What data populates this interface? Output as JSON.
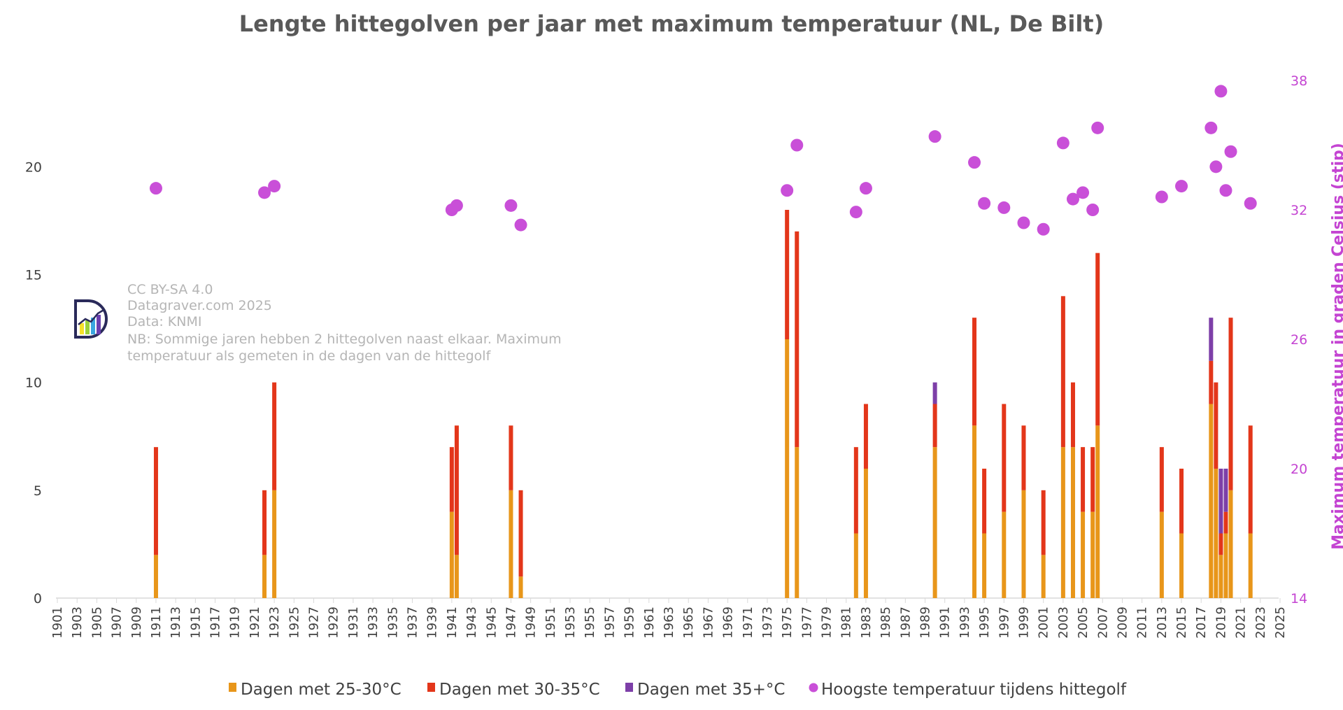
{
  "chart_data": {
    "type": "bar",
    "stacked": true,
    "title": "Lengte hittegolven per jaar met maximum temperatuur (NL, De Bilt)",
    "xlabel": "",
    "ylabel": "",
    "ylabel_right": "Maximum temperatuur in graden Celsius (stip)",
    "ylim": [
      0,
      24
    ],
    "ylim_right": [
      14,
      38
    ],
    "yticks": [
      0,
      5,
      10,
      15,
      20
    ],
    "yticks_right": [
      14,
      20,
      26,
      32,
      38
    ],
    "xlim": [
      1901,
      2025
    ],
    "xticks": [
      "1901",
      "1903",
      "1905",
      "1907",
      "1909",
      "1911",
      "1913",
      "1915",
      "1917",
      "1919",
      "1921",
      "1923",
      "1925",
      "1927",
      "1929",
      "1931",
      "1933",
      "1935",
      "1937",
      "1939",
      "1941",
      "1943",
      "1945",
      "1947",
      "1949",
      "1951",
      "1953",
      "1955",
      "1957",
      "1959",
      "1961",
      "1963",
      "1965",
      "1967",
      "1969",
      "1971",
      "1973",
      "1975",
      "1977",
      "1979",
      "1981",
      "1983",
      "1985",
      "1987",
      "1989",
      "1991",
      "1993",
      "1995",
      "1997",
      "1999",
      "2001",
      "2003",
      "2005",
      "2007",
      "2009",
      "2011",
      "2013",
      "2015",
      "2017",
      "2019",
      "2021",
      "2023",
      "2025"
    ],
    "grid": false,
    "legend_position": "bottom",
    "series": [
      {
        "name": "Dagen met 25-30°C",
        "color": "#e8961a"
      },
      {
        "name": "Dagen met 30-35°C",
        "color": "#e3361a"
      },
      {
        "name": "Dagen met 35+°C",
        "color": "#7d3fa8"
      },
      {
        "name": "Hoogste temperatuur tijdens hittegolf",
        "color": "#c94fd8",
        "type": "scatter",
        "axis": "right"
      }
    ],
    "bars": [
      {
        "x": 1911.0,
        "v": [
          2,
          5,
          0
        ]
      },
      {
        "x": 1922.0,
        "v": [
          2,
          3,
          0
        ]
      },
      {
        "x": 1923.0,
        "v": [
          5,
          5,
          0
        ]
      },
      {
        "x": 1941.0,
        "v": [
          4,
          3,
          0
        ]
      },
      {
        "x": 1941.5,
        "v": [
          2,
          6,
          0
        ]
      },
      {
        "x": 1947.0,
        "v": [
          5,
          3,
          0
        ]
      },
      {
        "x": 1948.0,
        "v": [
          1,
          4,
          0
        ]
      },
      {
        "x": 1975.0,
        "v": [
          12,
          6,
          0
        ]
      },
      {
        "x": 1976.0,
        "v": [
          7,
          10,
          0
        ]
      },
      {
        "x": 1982.0,
        "v": [
          3,
          4,
          0
        ]
      },
      {
        "x": 1983.0,
        "v": [
          6,
          3,
          0
        ]
      },
      {
        "x": 1990.0,
        "v": [
          7,
          2,
          1
        ]
      },
      {
        "x": 1994.0,
        "v": [
          8,
          5,
          0
        ]
      },
      {
        "x": 1995.0,
        "v": [
          3,
          3,
          0
        ]
      },
      {
        "x": 1997.0,
        "v": [
          4,
          5,
          0
        ]
      },
      {
        "x": 1999.0,
        "v": [
          5,
          3,
          0
        ]
      },
      {
        "x": 2001.0,
        "v": [
          2,
          3,
          0
        ]
      },
      {
        "x": 2003.0,
        "v": [
          7,
          7,
          0
        ]
      },
      {
        "x": 2004.0,
        "v": [
          7,
          3,
          0
        ]
      },
      {
        "x": 2005.0,
        "v": [
          4,
          3,
          0
        ]
      },
      {
        "x": 2006.0,
        "v": [
          4,
          3,
          0
        ]
      },
      {
        "x": 2006.5,
        "v": [
          8,
          8,
          0
        ]
      },
      {
        "x": 2013.0,
        "v": [
          4,
          3,
          0
        ]
      },
      {
        "x": 2015.0,
        "v": [
          3,
          3,
          0
        ]
      },
      {
        "x": 2018.0,
        "v": [
          9,
          2,
          2
        ]
      },
      {
        "x": 2018.5,
        "v": [
          6,
          4,
          0
        ]
      },
      {
        "x": 2019.0,
        "v": [
          2,
          1,
          3
        ]
      },
      {
        "x": 2019.5,
        "v": [
          3,
          1,
          2
        ]
      },
      {
        "x": 2020.0,
        "v": [
          5,
          8,
          0
        ]
      },
      {
        "x": 2022.0,
        "v": [
          3,
          5,
          0
        ]
      }
    ],
    "max_temp_points": [
      {
        "x": 1911.0,
        "y": 33.0
      },
      {
        "x": 1922.0,
        "y": 32.8
      },
      {
        "x": 1923.0,
        "y": 33.1
      },
      {
        "x": 1941.0,
        "y": 32.0
      },
      {
        "x": 1941.5,
        "y": 32.2
      },
      {
        "x": 1947.0,
        "y": 32.2
      },
      {
        "x": 1948.0,
        "y": 31.3
      },
      {
        "x": 1975.0,
        "y": 32.9
      },
      {
        "x": 1976.0,
        "y": 35.0
      },
      {
        "x": 1982.0,
        "y": 31.9
      },
      {
        "x": 1983.0,
        "y": 33.0
      },
      {
        "x": 1990.0,
        "y": 35.4
      },
      {
        "x": 1994.0,
        "y": 34.2
      },
      {
        "x": 1995.0,
        "y": 32.3
      },
      {
        "x": 1997.0,
        "y": 32.1
      },
      {
        "x": 1999.0,
        "y": 31.4
      },
      {
        "x": 2001.0,
        "y": 31.1
      },
      {
        "x": 2003.0,
        "y": 35.1
      },
      {
        "x": 2004.0,
        "y": 32.5
      },
      {
        "x": 2005.0,
        "y": 32.8
      },
      {
        "x": 2006.0,
        "y": 32.0
      },
      {
        "x": 2006.5,
        "y": 35.8
      },
      {
        "x": 2013.0,
        "y": 32.6
      },
      {
        "x": 2015.0,
        "y": 33.1
      },
      {
        "x": 2018.0,
        "y": 35.8
      },
      {
        "x": 2018.5,
        "y": 34.0
      },
      {
        "x": 2019.0,
        "y": 37.5
      },
      {
        "x": 2019.5,
        "y": 32.9
      },
      {
        "x": 2020.0,
        "y": 34.7
      },
      {
        "x": 2022.0,
        "y": 32.3
      }
    ]
  },
  "note": {
    "line1": "CC BY-SA 4.0",
    "line2": "Datagraver.com 2025",
    "line3": "Data:  KNMI",
    "line4": "NB: Sommige jaren hebben 2 hittegolven naast elkaar. Maximum",
    "line5": "temperatuur als gemeten in de dagen van de hittegolf"
  },
  "logo": {
    "name": "datagraver-logo-icon",
    "text": "D"
  }
}
